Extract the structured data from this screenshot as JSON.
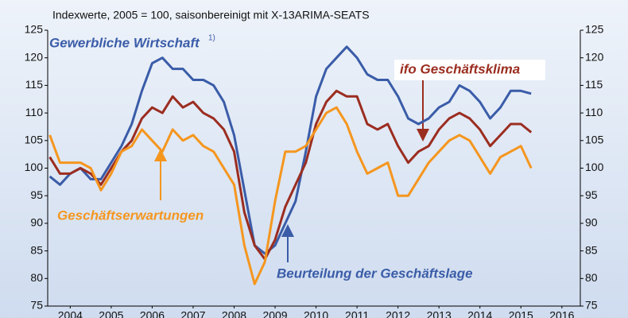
{
  "chart_data": {
    "type": "line",
    "title": "Indexwerte, 2005 = 100, saisonbereinigt mit X-13ARIMA-SEATS",
    "annotations": {
      "sector": "Gewerbliche Wirtschaft",
      "footnote_mark": "1)"
    },
    "x": [
      2004.0,
      2004.25,
      2004.5,
      2004.75,
      2005.0,
      2005.25,
      2005.5,
      2005.75,
      2006.0,
      2006.25,
      2006.5,
      2006.75,
      2007.0,
      2007.25,
      2007.5,
      2007.75,
      2008.0,
      2008.25,
      2008.5,
      2008.75,
      2009.0,
      2009.25,
      2009.5,
      2009.75,
      2010.0,
      2010.25,
      2010.5,
      2010.75,
      2011.0,
      2011.25,
      2011.5,
      2011.75,
      2012.0,
      2012.25,
      2012.5,
      2012.75,
      2013.0,
      2013.25,
      2013.5,
      2013.75,
      2014.0,
      2014.25,
      2014.5,
      2014.75,
      2015.0,
      2015.25,
      2015.5,
      2015.75
    ],
    "series": [
      {
        "name": "Beurteilung der Geschäftslage",
        "color": "#3a5ca8",
        "values": [
          98.5,
          97,
          99,
          100,
          98,
          98,
          101,
          104,
          108,
          114,
          119,
          120,
          118,
          118,
          116,
          116,
          115,
          112,
          106,
          96,
          86,
          84.5,
          86,
          90,
          94,
          103,
          113,
          118,
          120,
          122,
          120,
          117,
          116,
          116,
          113,
          109,
          108,
          109,
          111,
          112,
          115,
          114,
          112,
          109,
          111,
          114,
          114,
          113.5
        ]
      },
      {
        "name": "ifo Geschäftsklima",
        "color": "#9b2d20",
        "values": [
          102,
          99,
          99,
          100,
          99,
          97,
          100,
          103,
          105,
          109,
          111,
          110,
          113,
          111,
          112,
          110,
          109,
          107,
          103,
          92,
          86,
          83.5,
          87,
          93,
          97,
          101,
          108,
          112,
          114,
          113,
          113,
          108,
          107,
          108,
          104,
          101,
          103,
          104,
          107,
          109,
          110,
          109,
          107,
          104,
          106,
          108,
          108,
          106.5
        ]
      },
      {
        "name": "Geschäftserwartungen",
        "color": "#f5961e",
        "values": [
          106,
          101,
          101,
          101,
          100,
          96,
          99,
          103,
          104,
          107,
          105,
          103,
          107,
          105,
          106,
          104,
          103,
          100,
          97,
          86,
          79,
          83,
          94,
          103,
          103,
          104,
          107,
          110,
          111,
          108,
          103,
          99,
          100,
          101,
          95,
          95,
          98,
          101,
          103,
          105,
          106,
          105,
          102,
          99,
          102,
          103,
          104,
          100
        ]
      }
    ],
    "xlim": [
      2003.95,
      2016.95
    ],
    "xticks": [
      {
        "value": 2004.5,
        "label": "2004"
      },
      {
        "value": 2005.5,
        "label": "2005"
      },
      {
        "value": 2006.5,
        "label": "2006"
      },
      {
        "value": 2007.5,
        "label": "2007"
      },
      {
        "value": 2008.5,
        "label": "2008"
      },
      {
        "value": 2009.5,
        "label": "2009"
      },
      {
        "value": 2010.5,
        "label": "2010"
      },
      {
        "value": 2011.5,
        "label": "2011"
      },
      {
        "value": 2012.5,
        "label": "2012"
      },
      {
        "value": 2013.5,
        "label": "2013"
      },
      {
        "value": 2014.5,
        "label": "2014"
      },
      {
        "value": 2015.5,
        "label": "2015"
      },
      {
        "value": 2016.5,
        "label": "2016"
      }
    ],
    "ylim": [
      75,
      125
    ],
    "yticks": [
      75,
      80,
      85,
      90,
      95,
      100,
      105,
      110,
      115,
      120,
      125
    ]
  }
}
